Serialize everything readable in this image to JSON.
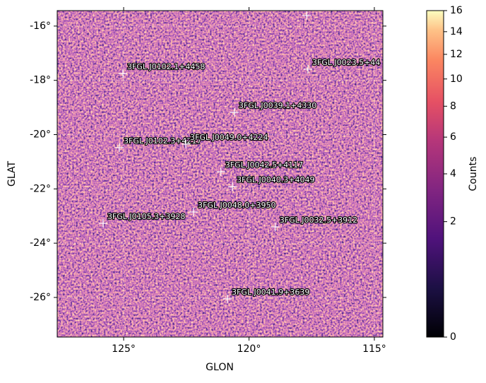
{
  "chart_data": {
    "type": "scatter",
    "x_label": "GLON",
    "y_label": "GLAT",
    "xlim": [
      127.65,
      114.66
    ],
    "ylim": [
      -27.46,
      -15.43
    ],
    "xticks": [
      {
        "value": 125,
        "label": "125°"
      },
      {
        "value": 120,
        "label": "120°"
      },
      {
        "value": 115,
        "label": "115°"
      }
    ],
    "yticks": [
      {
        "value": -16,
        "label": "-16°"
      },
      {
        "value": -18,
        "label": "-18°"
      },
      {
        "value": -20,
        "label": "-20°"
      },
      {
        "value": -22,
        "label": "-22°"
      },
      {
        "value": -24,
        "label": "-24°"
      },
      {
        "value": -26,
        "label": "-26°"
      }
    ],
    "grid": true,
    "marker_color": "#ffffff",
    "points": {
      "names": [
        "3FGL J0102.1+4458",
        "3FGL J0023.5+44",
        null,
        "3FGL J0039.1+4330",
        "3FGL J0102.3+4217",
        "3FGL J0049.0+4224",
        "3FGL J0042.5+4117",
        "3FGL J0040.3+4049",
        "3FGL J0048.0+3950",
        "3FGL J0105.3+3928",
        "3FGL J0032.5+3912",
        "3FGL J0041.9+3639"
      ],
      "x": [
        125.03,
        117.65,
        117.7,
        120.58,
        125.17,
        122.52,
        121.12,
        120.66,
        122.21,
        125.82,
        118.95,
        120.86
      ],
      "y": [
        -17.75,
        -17.59,
        -15.61,
        -19.18,
        -20.48,
        -20.35,
        -21.37,
        -21.92,
        -22.85,
        -23.27,
        -23.4,
        -26.05
      ]
    },
    "colorbar": {
      "label": "Counts",
      "scale": "sqrt",
      "lim": [
        0,
        16
      ],
      "ticks": [
        0,
        2,
        4,
        6,
        8,
        10,
        12,
        14,
        16
      ]
    }
  }
}
